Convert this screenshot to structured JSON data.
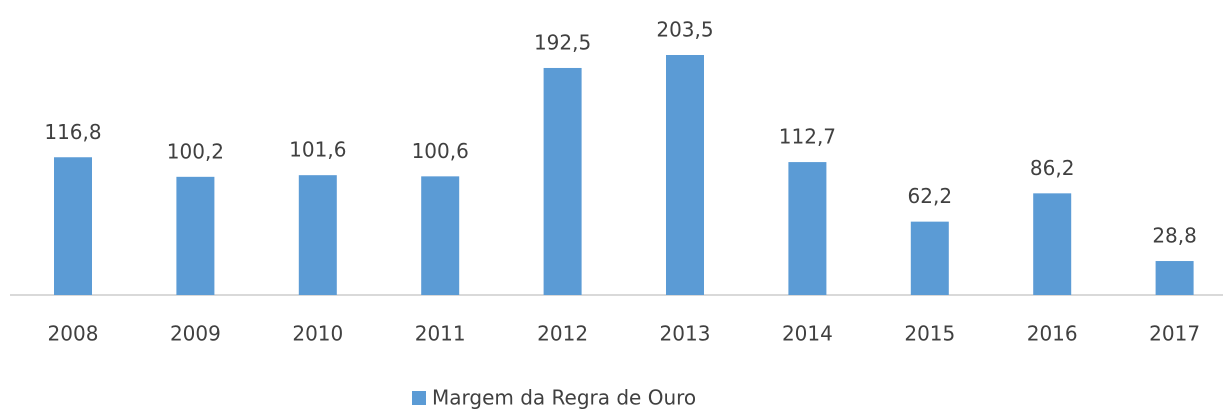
{
  "chart_data": {
    "type": "bar",
    "categories": [
      "2008",
      "2009",
      "2010",
      "2011",
      "2012",
      "2013",
      "2014",
      "2015",
      "2016",
      "2017"
    ],
    "series": [
      {
        "name": "Margem da Regra de Ouro",
        "color": "#5b9bd5",
        "values": [
          116.8,
          100.2,
          101.6,
          100.6,
          192.5,
          203.5,
          112.7,
          62.2,
          86.2,
          28.8
        ],
        "value_labels": [
          "116,8",
          "100,2",
          "101,6",
          "100,6",
          "192,5",
          "203,5",
          "112,7",
          "62,2",
          "86,2",
          "28,8"
        ]
      }
    ]
  }
}
